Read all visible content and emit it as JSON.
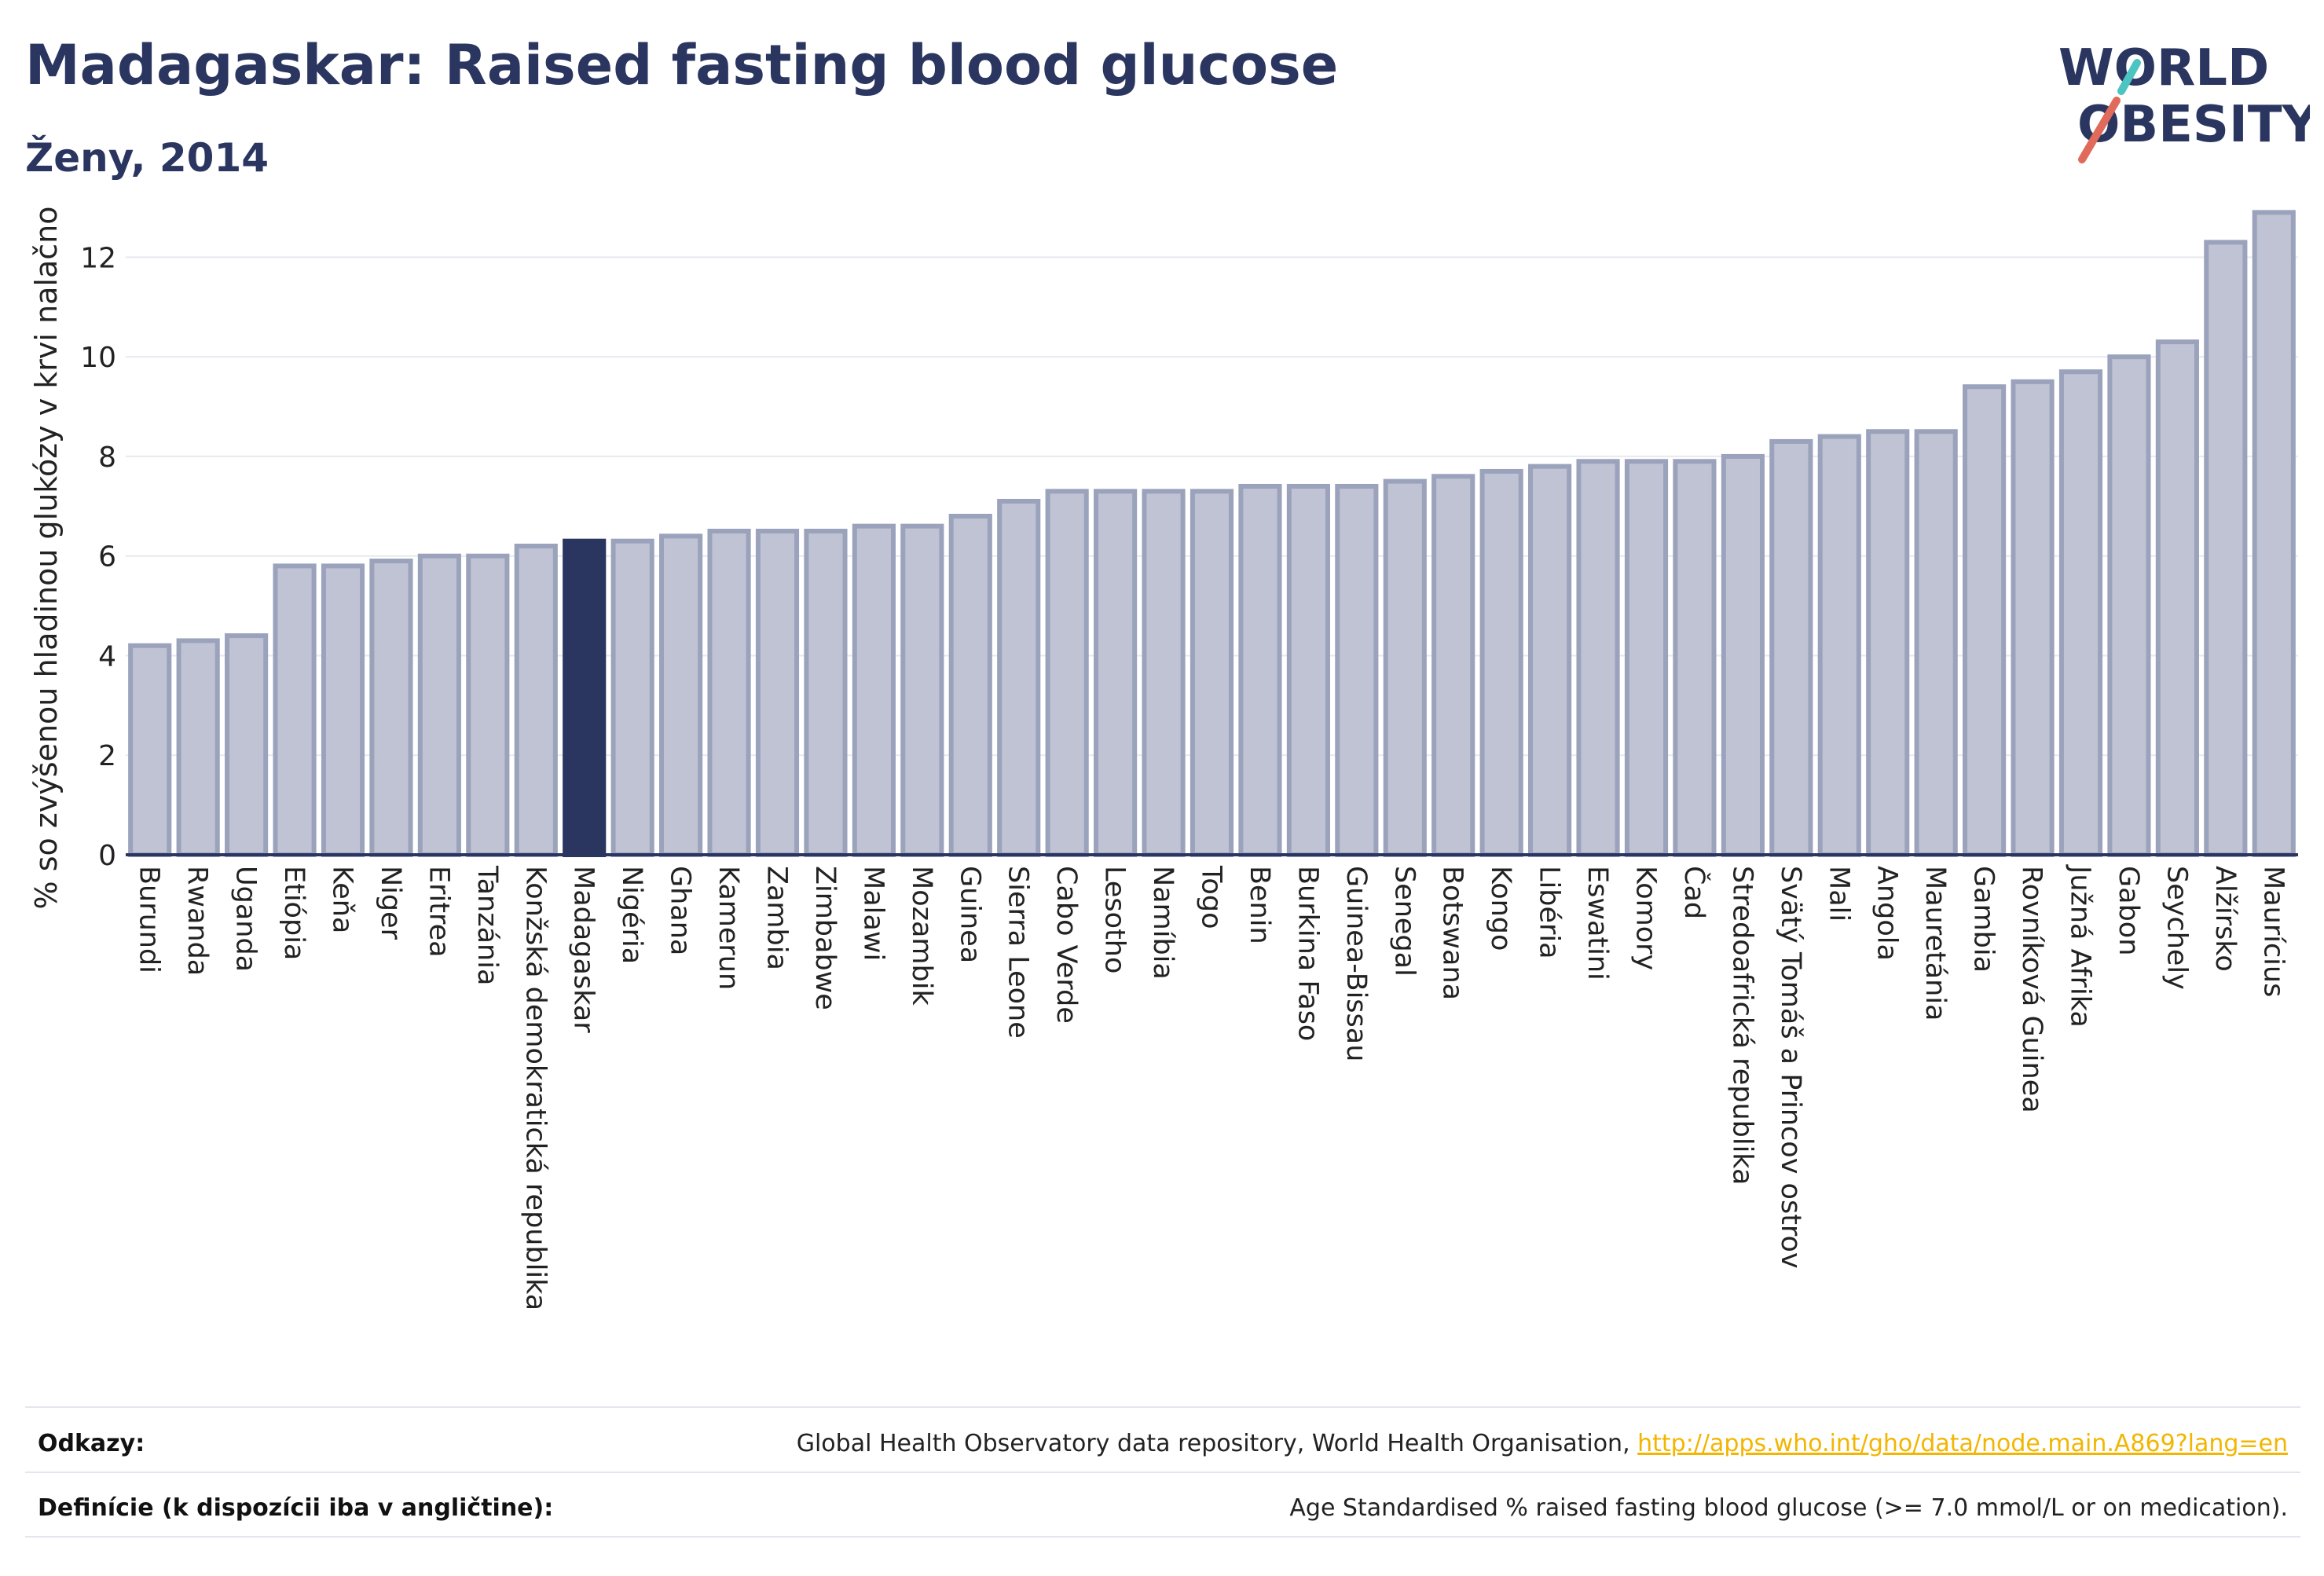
{
  "title": "Madagaskar: Raised fasting blood glucose",
  "subtitle": "Ženy, 2014",
  "logo": {
    "line1": "WORLD",
    "line2": "OBESITY",
    "colors": [
      "#2a3560",
      "#e06b5a",
      "#4cc4c1"
    ]
  },
  "colors": {
    "bar": "#bfc3d3",
    "bar_stroke": "#9ba2bc",
    "highlight": "#2a3560",
    "axis": "#2a3560",
    "grid": "#e8e9ef"
  },
  "chart_data": {
    "type": "bar",
    "ylabel": "% so zvýšenou hladinou glukózy v krvi nalačno",
    "ylim": [
      0,
      13.3
    ],
    "yticks": [
      0,
      2,
      4,
      6,
      8,
      10,
      12
    ],
    "grid": true,
    "highlight": "Madagaskar",
    "categories": [
      "Burundi",
      "Rwanda",
      "Uganda",
      "Etiópia",
      "Keňa",
      "Niger",
      "Eritrea",
      "Tanzánia",
      "Konžská demokratická republika",
      "Madagaskar",
      "Nigéria",
      "Ghana",
      "Kamerun",
      "Zambia",
      "Zimbabwe",
      "Malawi",
      "Mozambik",
      "Guinea",
      "Sierra Leone",
      "Cabo Verde",
      "Lesotho",
      "Namíbia",
      "Togo",
      "Benin",
      "Burkina Faso",
      "Guinea-Bissau",
      "Senegal",
      "Botswana",
      "Kongo",
      "Libéria",
      "Eswatini",
      "Komory",
      "Čad",
      "Stredoafrická republika",
      "Svätý Tomáš a Princov ostrov",
      "Mali",
      "Angola",
      "Mauretánia",
      "Gambia",
      "Rovníková Guinea",
      "Južná Afrika",
      "Gabon",
      "Seychely",
      "Alžírsko",
      "Maurícius"
    ],
    "values": [
      4.2,
      4.3,
      4.4,
      5.8,
      5.8,
      5.9,
      6.0,
      6.0,
      6.2,
      6.3,
      6.3,
      6.4,
      6.5,
      6.5,
      6.5,
      6.6,
      6.6,
      6.8,
      7.1,
      7.3,
      7.3,
      7.3,
      7.3,
      7.4,
      7.4,
      7.4,
      7.5,
      7.6,
      7.7,
      7.8,
      7.9,
      7.9,
      7.9,
      8.0,
      8.3,
      8.4,
      8.5,
      8.5,
      9.4,
      9.5,
      9.7,
      10.0,
      10.3,
      12.3,
      12.9
    ]
  },
  "footer": {
    "refs_label": "Odkazy:",
    "refs_text": "Global Health Observatory data repository, World Health Organisation, ",
    "refs_link": "http://apps.who.int/gho/data/node.main.A869?lang=en",
    "def_label": "Definície (k dispozícii iba v angličtine):",
    "def_text": "Age Standardised % raised fasting blood glucose (>= 7.0 mmol/L or on medication)."
  }
}
